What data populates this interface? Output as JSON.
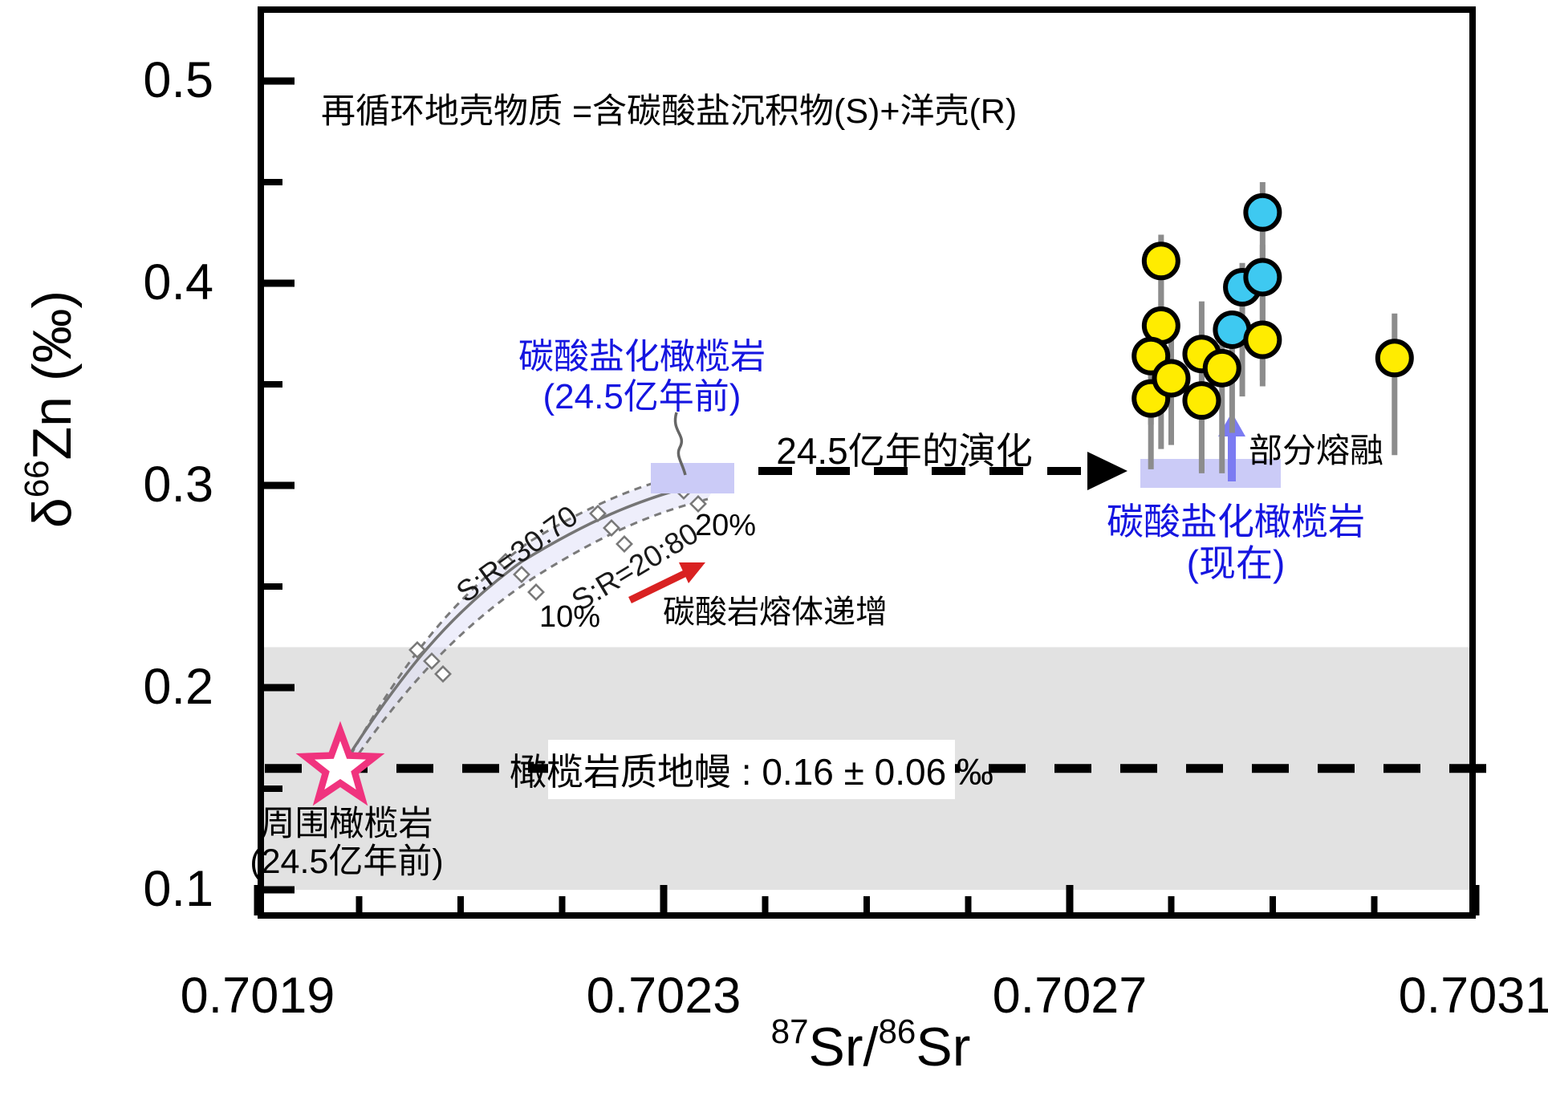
{
  "annotations": {
    "top_note": "再循环地壳物质 =含碳酸盐沉积物(S)+洋壳(R)",
    "carbonated_peridotite_past": {
      "line1": "碳酸盐化橄榄岩",
      "line2": "(24.5亿年前)"
    },
    "carbonated_peridotite_now": {
      "line1": "碳酸盐化橄榄岩",
      "line2": "(现在)"
    },
    "evolution_arrow_label": "24.5亿年的演化",
    "partial_melting_label": "部分熔融",
    "carbonatite_melt_increase_label": "碳酸岩熔体递增",
    "mantle_box_label": "橄榄岩质地幔 : 0.16 ± 0.06 ‰",
    "star_label": {
      "line1": "周围橄榄岩",
      "line2": "(24.5亿年前)"
    },
    "mixing_label_upper": "S:R=30:70",
    "mixing_label_lower": "S:R=20:80",
    "pct_10": "10%",
    "pct_20": "20%"
  },
  "axes": {
    "x": {
      "title_sup1": "87",
      "title_mid": "Sr/",
      "title_sup2": "86",
      "title_end": "Sr",
      "tick_labels": [
        "0.7019",
        "0.7023",
        "0.7027",
        "0.7031"
      ],
      "tick_values": [
        0.7019,
        0.7023,
        0.7027,
        0.7031
      ],
      "minor_tick_values": [
        0.702,
        0.7021,
        0.7022,
        0.7024,
        0.7025,
        0.7026,
        0.7028,
        0.7029,
        0.703
      ],
      "range": [
        0.7019,
        0.7031
      ]
    },
    "y": {
      "title_delta": "δ",
      "title_sup": "66",
      "title_rest": "Zn (‰)",
      "tick_labels": [
        "0.5",
        "0.4",
        "0.3",
        "0.2",
        "0.1"
      ],
      "tick_values": [
        0.5,
        0.4,
        0.3,
        0.2,
        0.1
      ],
      "minor_tick_values": [
        0.45,
        0.35,
        0.25,
        0.15
      ],
      "range": [
        0.1,
        0.5
      ]
    }
  },
  "chart_data": {
    "type": "scatter",
    "xlabel": "87Sr/86Sr",
    "ylabel": "δ66Zn (‰)",
    "xlim": [
      0.7019,
      0.7031
    ],
    "ylim": [
      0.1,
      0.5
    ],
    "grid": false,
    "series": [
      {
        "name": "cyan-samples",
        "marker": "circle",
        "color": "#3EC9F1",
        "points": [
          {
            "x": 0.70289,
            "y": 0.435,
            "eu": 0.015,
            "ed": 0.032
          },
          {
            "x": 0.70287,
            "y": 0.398,
            "eu": 0.012,
            "ed": 0.054
          },
          {
            "x": 0.70289,
            "y": 0.403,
            "eu": 0.016,
            "ed": 0.051
          },
          {
            "x": 0.70286,
            "y": 0.377,
            "eu": 0.009,
            "ed": 0.051
          }
        ]
      },
      {
        "name": "yellow-samples",
        "marker": "circle",
        "color": "#FFEC00",
        "points": [
          {
            "x": 0.70279,
            "y": 0.411,
            "eu": 0.013,
            "ed": 0.028
          },
          {
            "x": 0.70279,
            "y": 0.379,
            "eu": 0.024,
            "ed": 0.061
          },
          {
            "x": 0.70278,
            "y": 0.364,
            "eu": 0.02,
            "ed": 0.034
          },
          {
            "x": 0.70278,
            "y": 0.343,
            "eu": 0.022,
            "ed": 0.035
          },
          {
            "x": 0.70283,
            "y": 0.342,
            "eu": 0.02,
            "ed": 0.036
          },
          {
            "x": 0.7028,
            "y": 0.353,
            "eu": 0.024,
            "ed": 0.033
          },
          {
            "x": 0.70283,
            "y": 0.365,
            "eu": 0.026,
            "ed": 0.058
          },
          {
            "x": 0.70289,
            "y": 0.372,
            "eu": 0.022,
            "ed": 0.023
          },
          {
            "x": 0.70302,
            "y": 0.363,
            "eu": 0.022,
            "ed": 0.048
          },
          {
            "x": 0.70285,
            "y": 0.358,
            "eu": 0.022,
            "ed": 0.052
          }
        ]
      }
    ],
    "mantle_band": {
      "y_center": 0.16,
      "y_half_width": 0.06,
      "band_color": "#E2E2E2",
      "label": "橄榄岩质地幔 : 0.16 ± 0.06 ‰",
      "line_style": "dashed"
    },
    "star_point": {
      "x": 0.70198,
      "y": 0.16,
      "label": "周围橄榄岩 (24.5亿年前)",
      "color": "#F0337E"
    },
    "mixing_curve": {
      "labels": [
        "S:R=30:70",
        "S:R=20:80"
      ],
      "percent_marks": [
        "10%",
        "20%"
      ],
      "start": {
        "x": 0.70198,
        "y": 0.16
      },
      "end": {
        "x": 0.70233,
        "y": 0.31
      }
    },
    "boxes": [
      {
        "name": "carbonated-peridotite-2.45Ga",
        "x_range": [
          0.70229,
          0.70237
        ],
        "y_range": [
          0.296,
          0.311
        ],
        "color": "#CBCBF7"
      },
      {
        "name": "carbonated-peridotite-now",
        "x_range": [
          0.70277,
          0.70291
        ],
        "y_range": [
          0.299,
          0.313
        ],
        "color": "#CBCBF7"
      }
    ],
    "colors": {
      "yellow": "#FFEC00",
      "cyan": "#3EC9F1",
      "band_gray": "#E2E2E2",
      "lavender_box": "#CBCBF7",
      "star_pink": "#F0337E",
      "blue_text": "#1515E0",
      "red_arrow": "#D92121",
      "violet_arrow": "#7B7BF2",
      "error_bar_gray": "#8C8C8C"
    }
  }
}
